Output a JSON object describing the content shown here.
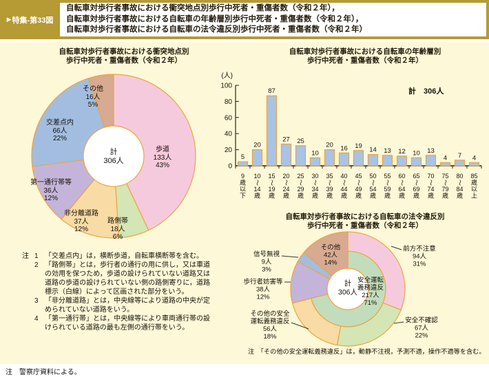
{
  "header": {
    "figure_label": "特集-第33図",
    "arrow": "▶",
    "title_lines": [
      "自転車対歩行者事故における衝突地点別歩行中死者・重傷者数（令和２年），",
      "自転車対歩行者事故における自転車の年齢層別歩行中死者・重傷者数（令和２年），",
      "自転車対歩行者事故における自転車の法令違反別歩行中死者・重傷者数（令和２年）"
    ]
  },
  "colors": {
    "frame": "#b69a33",
    "panel_bg": "#fdf8d8",
    "outline": "#eea43f",
    "bar_fill": "#a9c3e4",
    "bar_border": "#e9a33e",
    "leader": "#3f3427",
    "axis": "#222222"
  },
  "chart_data": [
    {
      "type": "pie",
      "id": "collision-location",
      "title_lines": [
        "自転車対歩行者事故における衝突地点別",
        "歩行中死者・重傷者数（令和２年）"
      ],
      "total": {
        "label": "計",
        "value_label": "306人",
        "value": 306
      },
      "slices": [
        {
          "label": "歩道",
          "value": 133,
          "people": "133人",
          "percent": "43%",
          "pct": 43,
          "color": "#f5cadc"
        },
        {
          "label": "路側帯",
          "value": 18,
          "people": "18人",
          "percent": "6%",
          "pct": 6,
          "color": "#d3e6b4"
        },
        {
          "label": "非分離道路",
          "value": 37,
          "people": "37人",
          "percent": "12%",
          "pct": 12,
          "color": "#f8dba5"
        },
        {
          "label": "第一通行帯等",
          "value": 36,
          "people": "36人",
          "percent": "12%",
          "pct": 12,
          "color": "#c4b4da"
        },
        {
          "label": "交差点内",
          "value": 66,
          "people": "66人",
          "percent": "22%",
          "pct": 22,
          "color": "#a2bde0"
        },
        {
          "label": "その他",
          "value": 16,
          "people": "16人",
          "percent": "5%",
          "pct": 5,
          "color": "#d7aa91"
        }
      ]
    },
    {
      "type": "bar",
      "id": "age-group",
      "title_lines": [
        "自転車対歩行者事故における自転車の年齢層別",
        "歩行中死者・重傷者数（令和２年）"
      ],
      "total_label": "計　306人",
      "y_unit": "(人)",
      "ylabel": "",
      "xlabel": "",
      "ylim": [
        0,
        100
      ],
      "yticks": [
        0,
        20,
        40,
        60,
        80,
        100
      ],
      "categories": [
        "9歳以下",
        "10〜14歳",
        "15〜19歳",
        "20〜24歳",
        "25〜29歳",
        "30〜34歳",
        "35〜39歳",
        "40〜44歳",
        "45〜49歳",
        "50〜54歳",
        "55〜59歳",
        "60〜64歳",
        "65〜69歳",
        "70〜74歳",
        "75〜79歳",
        "80〜84歳",
        "85歳以上"
      ],
      "values": [
        5,
        20,
        87,
        27,
        25,
        10,
        20,
        16,
        19,
        14,
        13,
        12,
        10,
        13,
        4,
        7,
        4
      ]
    },
    {
      "type": "pie",
      "id": "law-violation",
      "title_lines": [
        "自転車対歩行者事故における自転車の法令違反別",
        "歩行中死者・重傷者数（令和２年）"
      ],
      "total": {
        "label": "計",
        "value_label": "306人",
        "value": 306
      },
      "inner_ring": {
        "label": "安全運転義務違反",
        "label_lines": [
          "安全運転",
          "義務違反"
        ],
        "value": 217,
        "people": "217人",
        "percent": "71%",
        "pct": 71,
        "color": "#c2ddbb"
      },
      "slices": [
        {
          "label": "前方不注意",
          "value": 94,
          "people": "94人",
          "percent": "31%",
          "pct": 31,
          "color": "#f5cadc",
          "in_ring": true
        },
        {
          "label": "安全不確認",
          "value": 67,
          "people": "67人",
          "percent": "22%",
          "pct": 22,
          "color": "#d3e6b4",
          "in_ring": true
        },
        {
          "label": "その他の安全運転義務違反",
          "label_lines": [
            "その他の安全",
            "運転義務違反"
          ],
          "value": 56,
          "people": "56人",
          "percent": "18%",
          "pct": 18,
          "color": "#f8dba5",
          "in_ring": true
        },
        {
          "label": "歩行者妨害等",
          "value": 38,
          "people": "38人",
          "percent": "12%",
          "pct": 12,
          "color": "#c4b4da",
          "in_ring": false
        },
        {
          "label": "信号無視",
          "value": 9,
          "people": "9人",
          "percent": "3%",
          "pct": 3,
          "color": "#a2bde0",
          "in_ring": false
        },
        {
          "label": "その他",
          "value": 42,
          "people": "42人",
          "percent": "14%",
          "pct": 14,
          "color": "#d7aa91",
          "in_ring": false
        }
      ],
      "note": "注　「その他の安全運転義務違反」は，動静不注視，予測不適，操作不適等を含む。"
    }
  ],
  "notes": {
    "prefix": "注",
    "items": [
      {
        "num": "1",
        "text": "「交差点内」は，横断歩道，自転車横断帯を含む。"
      },
      {
        "num": "2",
        "text": "「路側帯」とは，歩行者の通行の用に供し，又は車道の効用を保つため，歩道の設けられていない道路又は道路の歩道の設けられていない側の路側寄りに，道路標示（白線）によって区画された部分をいう。"
      },
      {
        "num": "3",
        "text": "「非分離道路」とは，中央線等により道路の中央が定められていない道路をいう。"
      },
      {
        "num": "4",
        "text": "「第一通行帯」とは，中央線等により車両通行帯の設けられている道路の最も左側の通行帯をいう。"
      }
    ]
  },
  "source_note": "注　警察庁資料による。"
}
